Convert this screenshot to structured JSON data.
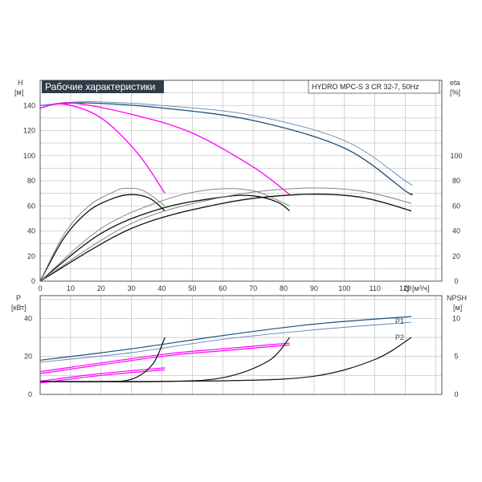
{
  "colors": {
    "grid": "#c8c8c8",
    "axis": "#555555",
    "title_bg": "#2f3b48",
    "title_fg": "#ffffff",
    "blue": "#1f4e79",
    "magenta": "#ff00ff",
    "black": "#111111"
  },
  "chart_data": [
    {
      "type": "line",
      "title": "Рабочие характеристики",
      "subtitle": "HYDRO MPC-S 3 CR 32-7, 50Hz",
      "left_axis": {
        "label": "H",
        "unit": "[м]",
        "range": [
          0,
          160
        ],
        "ticks": [
          0,
          20,
          40,
          60,
          80,
          100,
          120,
          140
        ]
      },
      "right_axis": {
        "label": "eta",
        "unit": "[%]",
        "range": [
          0,
          160
        ],
        "ticks": [
          0,
          20,
          40,
          60,
          80,
          100
        ]
      },
      "x_axis": {
        "label": "Q",
        "unit": "[м³/ч]",
        "range": [
          0,
          132
        ],
        "ticks": [
          0,
          10,
          20,
          30,
          40,
          50,
          60,
          70,
          80,
          90,
          100,
          110,
          120
        ]
      },
      "grid": true,
      "series": [
        {
          "kind": "head",
          "color": "blue",
          "points": [
            [
              0,
              140
            ],
            [
              15,
              142
            ],
            [
              40,
              138
            ],
            [
              70,
              128
            ],
            [
              100,
              106
            ],
            [
              120,
              72
            ],
            [
              122,
              70
            ]
          ]
        },
        {
          "kind": "head",
          "color": "blue_light",
          "points": [
            [
              0,
              140
            ],
            [
              15,
              143
            ],
            [
              40,
              140
            ],
            [
              70,
              132
            ],
            [
              100,
              112
            ],
            [
              120,
              80
            ],
            [
              122,
              77
            ]
          ]
        },
        {
          "kind": "head",
          "color": "magenta",
          "points": [
            [
              0,
              138
            ],
            [
              8,
              141
            ],
            [
              20,
              130
            ],
            [
              32,
              102
            ],
            [
              41,
              70
            ]
          ]
        },
        {
          "kind": "head",
          "color": "magenta",
          "points": [
            [
              0,
              138
            ],
            [
              10,
              142
            ],
            [
              30,
              133
            ],
            [
              50,
              118
            ],
            [
              70,
              91
            ],
            [
              82,
              69
            ]
          ]
        },
        {
          "kind": "eta",
          "color": "black",
          "points": [
            [
              0,
              0
            ],
            [
              8,
              35
            ],
            [
              16,
              56
            ],
            [
              24,
              66
            ],
            [
              30,
              69
            ],
            [
              36,
              66
            ],
            [
              41,
              56
            ]
          ]
        },
        {
          "kind": "eta",
          "color": "grey",
          "points": [
            [
              0,
              0
            ],
            [
              8,
              38
            ],
            [
              16,
              60
            ],
            [
              24,
              71
            ],
            [
              28,
              74
            ],
            [
              34,
              72
            ],
            [
              41,
              60
            ]
          ]
        },
        {
          "kind": "eta",
          "color": "black",
          "points": [
            [
              0,
              0
            ],
            [
              20,
              38
            ],
            [
              40,
              58
            ],
            [
              60,
              67
            ],
            [
              70,
              68
            ],
            [
              78,
              63
            ],
            [
              82,
              56
            ]
          ]
        },
        {
          "kind": "eta",
          "color": "grey",
          "points": [
            [
              0,
              0
            ],
            [
              20,
              42
            ],
            [
              40,
              64
            ],
            [
              56,
              73
            ],
            [
              70,
              72
            ],
            [
              82,
              60
            ]
          ]
        },
        {
          "kind": "eta",
          "color": "black",
          "points": [
            [
              0,
              0
            ],
            [
              30,
              42
            ],
            [
              60,
              62
            ],
            [
              85,
              69
            ],
            [
              105,
              67
            ],
            [
              122,
              56
            ]
          ]
        },
        {
          "kind": "eta",
          "color": "grey",
          "points": [
            [
              0,
              0
            ],
            [
              30,
              46
            ],
            [
              60,
              67
            ],
            [
              85,
              74
            ],
            [
              105,
              72
            ],
            [
              122,
              62
            ]
          ]
        }
      ]
    },
    {
      "type": "line",
      "left_axis": {
        "label": "P",
        "unit": "[кВт]",
        "range": [
          0,
          52
        ],
        "ticks": [
          0,
          20,
          40
        ]
      },
      "right_axis": {
        "label": "NPSH",
        "unit": "[м]",
        "range": [
          0,
          13
        ],
        "ticks": [
          0,
          5,
          10
        ]
      },
      "x_axis": {
        "range": [
          0,
          132
        ]
      },
      "grid": true,
      "series_labels": [
        "P1",
        "P2"
      ],
      "series": [
        {
          "kind": "P1",
          "color": "blue",
          "points": [
            [
              0,
              18
            ],
            [
              30,
              24
            ],
            [
              60,
              31
            ],
            [
              90,
              37
            ],
            [
              122,
              41
            ]
          ]
        },
        {
          "kind": "P2",
          "color": "blue_light",
          "points": [
            [
              0,
              17
            ],
            [
              30,
              22
            ],
            [
              60,
              29
            ],
            [
              90,
              34
            ],
            [
              122,
              38
            ]
          ]
        },
        {
          "kind": "P1",
          "color": "magenta",
          "points": [
            [
              0,
              12
            ],
            [
              40,
              21
            ],
            [
              60,
              24
            ],
            [
              82,
              27
            ]
          ]
        },
        {
          "kind": "P2",
          "color": "magenta",
          "points": [
            [
              0,
              11
            ],
            [
              40,
              20
            ],
            [
              60,
              23
            ],
            [
              82,
              26
            ]
          ]
        },
        {
          "kind": "P1",
          "color": "magenta",
          "points": [
            [
              0,
              7
            ],
            [
              20,
              11
            ],
            [
              41,
              14
            ]
          ]
        },
        {
          "kind": "P2",
          "color": "magenta",
          "points": [
            [
              0,
              6
            ],
            [
              20,
              10
            ],
            [
              41,
              13
            ]
          ]
        },
        {
          "kind": "NPSH",
          "color": "black",
          "points": [
            [
              0,
              1.7
            ],
            [
              20,
              1.7
            ],
            [
              30,
              2.0
            ],
            [
              37,
              4.0
            ],
            [
              41,
              7.5
            ]
          ]
        },
        {
          "kind": "NPSH",
          "color": "black",
          "points": [
            [
              0,
              1.7
            ],
            [
              40,
              1.7
            ],
            [
              60,
              2.2
            ],
            [
              75,
              4.4
            ],
            [
              82,
              7.5
            ]
          ]
        },
        {
          "kind": "NPSH",
          "color": "black",
          "points": [
            [
              0,
              1.7
            ],
            [
              60,
              1.8
            ],
            [
              90,
              2.4
            ],
            [
              110,
              4.6
            ],
            [
              122,
              7.5
            ]
          ]
        }
      ]
    }
  ]
}
